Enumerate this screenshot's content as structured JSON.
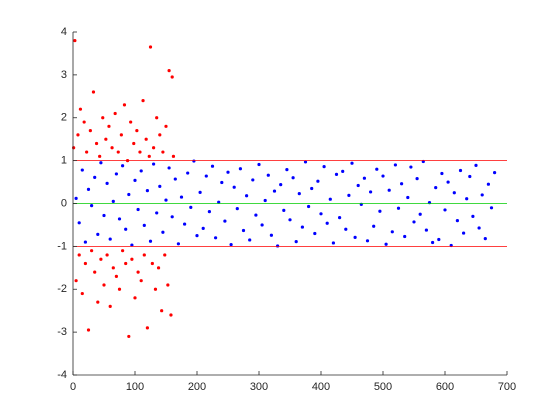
{
  "chart_data": {
    "type": "scatter",
    "xlim": [
      0,
      700
    ],
    "xticks": [
      0,
      100,
      200,
      300,
      400,
      500,
      600,
      700
    ],
    "ylim": [
      -4,
      4
    ],
    "yticks": [
      -4,
      -3,
      -2,
      -1,
      0,
      1,
      2,
      3,
      4
    ],
    "grid": false,
    "series": [
      {
        "type": "scatter",
        "color": "#ff0000",
        "x": [
          1,
          3,
          5,
          8,
          10,
          12,
          15,
          18,
          20,
          22,
          25,
          28,
          30,
          33,
          35,
          38,
          40,
          43,
          45,
          48,
          50,
          53,
          55,
          58,
          60,
          63,
          65,
          68,
          70,
          73,
          75,
          78,
          80,
          83,
          85,
          88,
          90,
          93,
          95,
          98,
          100,
          103,
          105,
          108,
          110,
          113,
          115,
          118,
          120,
          123,
          125,
          128,
          130,
          133,
          135,
          138,
          140,
          143,
          145,
          148,
          150,
          153,
          155,
          158,
          160,
          162
        ],
        "values": [
          1.3,
          3.8,
          -1.8,
          1.6,
          -1.2,
          2.2,
          -2.1,
          1.9,
          -1.4,
          1.2,
          -2.95,
          1.7,
          -1.1,
          2.6,
          -1.6,
          1.4,
          -2.3,
          1.1,
          -1.3,
          2.0,
          -1.9,
          1.5,
          -1.2,
          1.8,
          -2.4,
          1.3,
          -1.5,
          2.1,
          -1.7,
          1.2,
          -2.0,
          1.6,
          -1.1,
          2.3,
          -1.4,
          1.0,
          -3.1,
          1.9,
          -1.3,
          1.4,
          -2.2,
          1.7,
          -1.6,
          1.2,
          -1.8,
          2.4,
          -1.2,
          1.5,
          -2.9,
          1.1,
          3.65,
          -1.4,
          1.3,
          -2.0,
          2.0,
          -1.5,
          1.6,
          -2.5,
          1.2,
          -1.2,
          1.8,
          -1.9,
          3.1,
          -2.6,
          2.95,
          1.1
        ]
      },
      {
        "type": "scatter",
        "color": "#0000ff",
        "x": [
          5,
          10,
          15,
          20,
          25,
          30,
          35,
          40,
          45,
          50,
          55,
          60,
          65,
          70,
          75,
          80,
          85,
          90,
          95,
          100,
          105,
          110,
          115,
          120,
          125,
          130,
          135,
          140,
          145,
          150,
          155,
          160,
          165,
          170,
          175,
          180,
          185,
          190,
          195,
          200,
          205,
          210,
          215,
          220,
          225,
          230,
          235,
          240,
          245,
          250,
          255,
          260,
          265,
          270,
          275,
          280,
          285,
          290,
          295,
          300,
          305,
          310,
          315,
          320,
          325,
          330,
          335,
          340,
          345,
          350,
          355,
          360,
          365,
          370,
          375,
          380,
          385,
          390,
          395,
          400,
          405,
          410,
          415,
          420,
          425,
          430,
          435,
          440,
          445,
          450,
          455,
          460,
          465,
          470,
          475,
          480,
          485,
          490,
          495,
          500,
          505,
          510,
          515,
          520,
          525,
          530,
          535,
          540,
          545,
          550,
          555,
          560,
          565,
          570,
          575,
          580,
          585,
          590,
          595,
          600,
          605,
          610,
          615,
          620,
          625,
          630,
          635,
          640,
          645,
          650,
          655,
          660,
          665,
          670,
          675,
          680
        ],
        "values": [
          0.12,
          -0.45,
          0.78,
          -0.9,
          0.33,
          -0.05,
          0.61,
          -0.72,
          0.95,
          -0.28,
          0.47,
          -0.83,
          0.05,
          0.69,
          -0.36,
          0.88,
          -0.6,
          0.21,
          -0.97,
          0.54,
          -0.14,
          0.76,
          -0.51,
          0.3,
          -0.88,
          0.92,
          -0.22,
          0.4,
          -0.67,
          0.08,
          0.83,
          -0.31,
          0.57,
          -0.94,
          0.15,
          -0.48,
          0.71,
          -0.09,
          0.99,
          -0.75,
          0.26,
          -0.58,
          0.64,
          -0.19,
          0.87,
          -0.8,
          0.03,
          0.49,
          -0.41,
          0.73,
          -0.96,
          0.38,
          -0.12,
          0.81,
          -0.63,
          0.18,
          -0.85,
          0.55,
          -0.27,
          0.91,
          -0.5,
          0.07,
          0.66,
          -0.74,
          0.29,
          -0.99,
          0.44,
          -0.16,
          0.79,
          -0.38,
          0.6,
          -0.89,
          0.23,
          -0.55,
          0.97,
          -0.07,
          0.35,
          -0.7,
          0.52,
          -0.24,
          0.86,
          -0.46,
          0.1,
          -0.92,
          0.68,
          -0.33,
          0.75,
          -0.6,
          0.19,
          0.94,
          -0.79,
          0.42,
          -0.02,
          0.59,
          -0.87,
          0.27,
          -0.53,
          0.8,
          -0.18,
          0.64,
          -0.95,
          0.31,
          -0.66,
          0.9,
          -0.11,
          0.46,
          -0.77,
          0.14,
          0.85,
          -0.43,
          0.58,
          -0.25,
          0.98,
          -0.62,
          0.02,
          -0.91,
          0.37,
          -0.84,
          0.7,
          -0.15,
          0.5,
          -0.98,
          0.25,
          -0.4,
          0.77,
          -0.69,
          0.11,
          0.63,
          -0.3,
          0.89,
          -0.57,
          0.2,
          -0.82,
          0.45,
          -0.1,
          0.72
        ]
      },
      {
        "type": "line",
        "color": "#ff0000",
        "x": [
          0,
          700
        ],
        "values": [
          1,
          1
        ]
      },
      {
        "type": "line",
        "color": "#ff0000",
        "x": [
          0,
          700
        ],
        "values": [
          -1,
          -1
        ]
      },
      {
        "type": "line",
        "color": "#00cc00",
        "x": [
          0,
          700
        ],
        "values": [
          0,
          0
        ]
      }
    ]
  }
}
